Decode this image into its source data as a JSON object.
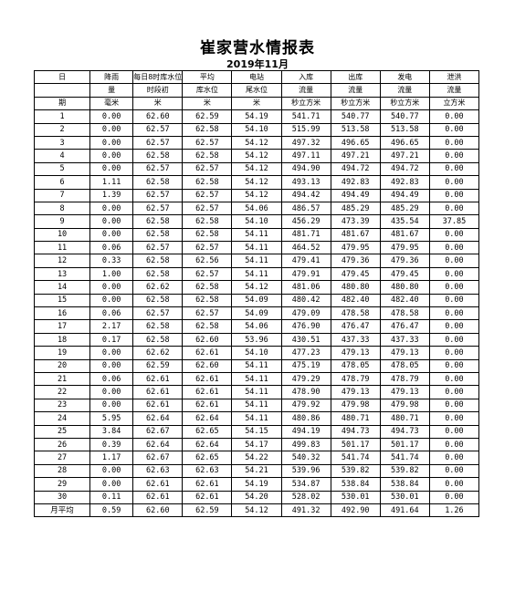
{
  "title": "崔家营水情报表",
  "subtitle": "2019年11月",
  "header_rows": [
    [
      "日",
      "降雨",
      "每日8时库水位",
      "平均",
      "电站",
      "入库",
      "出库",
      "发电",
      "泄洪"
    ],
    [
      "",
      "量",
      "时段初",
      "库水位",
      "尾水位",
      "流量",
      "流量",
      "流量",
      "流量"
    ],
    [
      "期",
      "毫米",
      "米",
      "米",
      "米",
      "秒立方米",
      "秒立方米",
      "秒立方米",
      "立方米"
    ]
  ],
  "rows": [
    [
      "1",
      "0.00",
      "62.60",
      "62.59",
      "54.19",
      "541.71",
      "540.77",
      "540.77",
      "0.00"
    ],
    [
      "2",
      "0.00",
      "62.57",
      "62.58",
      "54.10",
      "515.99",
      "513.58",
      "513.58",
      "0.00"
    ],
    [
      "3",
      "0.00",
      "62.57",
      "62.57",
      "54.12",
      "497.32",
      "496.65",
      "496.65",
      "0.00"
    ],
    [
      "4",
      "0.00",
      "62.58",
      "62.58",
      "54.12",
      "497.11",
      "497.21",
      "497.21",
      "0.00"
    ],
    [
      "5",
      "0.00",
      "62.57",
      "62.57",
      "54.12",
      "494.90",
      "494.72",
      "494.72",
      "0.00"
    ],
    [
      "6",
      "1.11",
      "62.58",
      "62.58",
      "54.12",
      "493.13",
      "492.83",
      "492.83",
      "0.00"
    ],
    [
      "7",
      "1.39",
      "62.57",
      "62.57",
      "54.12",
      "494.42",
      "494.49",
      "494.49",
      "0.00"
    ],
    [
      "8",
      "0.00",
      "62.57",
      "62.57",
      "54.06",
      "486.57",
      "485.29",
      "485.29",
      "0.00"
    ],
    [
      "9",
      "0.00",
      "62.58",
      "62.58",
      "54.10",
      "456.29",
      "473.39",
      "435.54",
      "37.85"
    ],
    [
      "10",
      "0.00",
      "62.58",
      "62.58",
      "54.11",
      "481.71",
      "481.67",
      "481.67",
      "0.00"
    ],
    [
      "11",
      "0.06",
      "62.57",
      "62.57",
      "54.11",
      "464.52",
      "479.95",
      "479.95",
      "0.00"
    ],
    [
      "12",
      "0.33",
      "62.58",
      "62.56",
      "54.11",
      "479.41",
      "479.36",
      "479.36",
      "0.00"
    ],
    [
      "13",
      "1.00",
      "62.58",
      "62.57",
      "54.11",
      "479.91",
      "479.45",
      "479.45",
      "0.00"
    ],
    [
      "14",
      "0.00",
      "62.62",
      "62.58",
      "54.12",
      "481.06",
      "480.80",
      "480.80",
      "0.00"
    ],
    [
      "15",
      "0.00",
      "62.58",
      "62.58",
      "54.09",
      "480.42",
      "482.40",
      "482.40",
      "0.00"
    ],
    [
      "16",
      "0.06",
      "62.57",
      "62.57",
      "54.09",
      "479.09",
      "478.58",
      "478.58",
      "0.00"
    ],
    [
      "17",
      "2.17",
      "62.58",
      "62.58",
      "54.06",
      "476.90",
      "476.47",
      "476.47",
      "0.00"
    ],
    [
      "18",
      "0.17",
      "62.58",
      "62.60",
      "53.96",
      "430.51",
      "437.33",
      "437.33",
      "0.00"
    ],
    [
      "19",
      "0.00",
      "62.62",
      "62.61",
      "54.10",
      "477.23",
      "479.13",
      "479.13",
      "0.00"
    ],
    [
      "20",
      "0.00",
      "62.59",
      "62.60",
      "54.11",
      "475.19",
      "478.05",
      "478.05",
      "0.00"
    ],
    [
      "21",
      "0.06",
      "62.61",
      "62.61",
      "54.11",
      "479.29",
      "478.79",
      "478.79",
      "0.00"
    ],
    [
      "22",
      "0.00",
      "62.61",
      "62.61",
      "54.11",
      "478.90",
      "479.13",
      "479.13",
      "0.00"
    ],
    [
      "23",
      "0.00",
      "62.61",
      "62.61",
      "54.11",
      "479.92",
      "479.98",
      "479.98",
      "0.00"
    ],
    [
      "24",
      "5.95",
      "62.64",
      "62.64",
      "54.11",
      "480.86",
      "480.71",
      "480.71",
      "0.00"
    ],
    [
      "25",
      "3.84",
      "62.67",
      "62.65",
      "54.15",
      "494.19",
      "494.73",
      "494.73",
      "0.00"
    ],
    [
      "26",
      "0.39",
      "62.64",
      "62.64",
      "54.17",
      "499.83",
      "501.17",
      "501.17",
      "0.00"
    ],
    [
      "27",
      "1.17",
      "62.67",
      "62.65",
      "54.22",
      "540.32",
      "541.74",
      "541.74",
      "0.00"
    ],
    [
      "28",
      "0.00",
      "62.63",
      "62.63",
      "54.21",
      "539.96",
      "539.82",
      "539.82",
      "0.00"
    ],
    [
      "29",
      "0.00",
      "62.61",
      "62.61",
      "54.19",
      "534.87",
      "538.84",
      "538.84",
      "0.00"
    ],
    [
      "30",
      "0.11",
      "62.61",
      "62.61",
      "54.20",
      "528.02",
      "530.01",
      "530.01",
      "0.00"
    ],
    [
      "月平均",
      "0.59",
      "62.60",
      "62.59",
      "54.12",
      "491.32",
      "492.90",
      "491.64",
      "1.26"
    ]
  ]
}
